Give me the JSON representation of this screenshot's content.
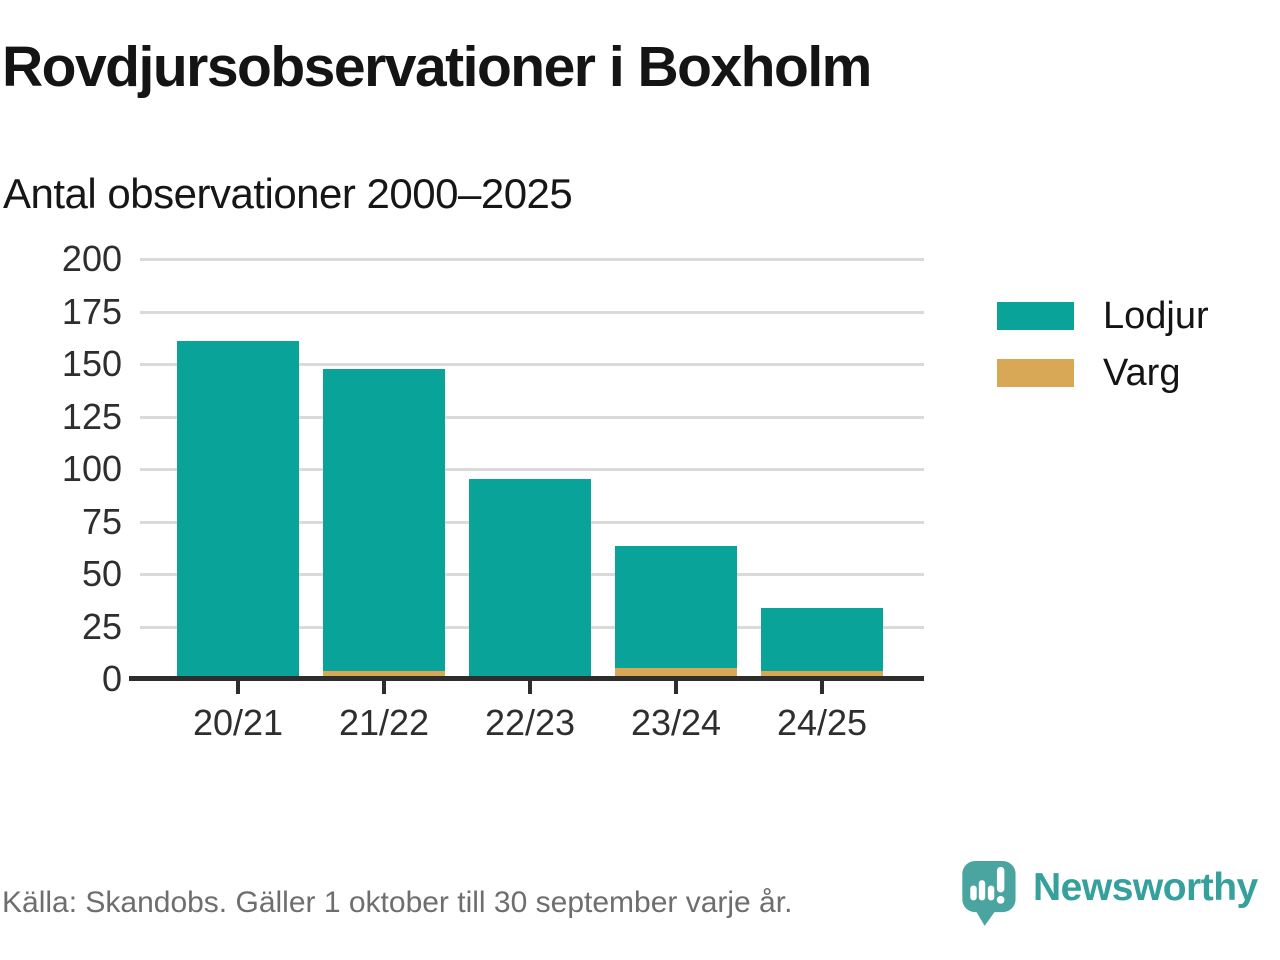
{
  "header": {
    "title": "Rovdjursobservationer i Boxholm",
    "subtitle": "Antal observationer 2000–2025"
  },
  "footer": {
    "source": "Källa: Skandobs. Gäller 1 oktober till 30 september varje år.",
    "brand": "Newsworthy"
  },
  "colors": {
    "lodjur": "#0aa39a",
    "varg": "#d9a857",
    "axis": "#2d2d2d",
    "grid": "#dadada",
    "logo_teal": "#4aa5a1",
    "wordmark_teal": "#35a09c",
    "source_gray": "#6e6e6e"
  },
  "chart_data": {
    "type": "bar",
    "stacked": true,
    "title": "Rovdjursobservationer i Boxholm",
    "subtitle": "Antal observationer 2000–2025",
    "categories": [
      "20/21",
      "21/22",
      "22/23",
      "23/24",
      "24/25"
    ],
    "series": [
      {
        "name": "Lodjur",
        "color": "#0aa39a",
        "values": [
          161,
          144,
          95,
          58,
          30
        ]
      },
      {
        "name": "Varg",
        "color": "#d9a857",
        "values": [
          0,
          4,
          0,
          5,
          4
        ]
      }
    ],
    "totals": [
      161,
      148,
      95,
      63,
      34
    ],
    "xlabel": "",
    "ylabel": "",
    "ylim": [
      0,
      200
    ],
    "yticks": [
      0,
      25,
      50,
      75,
      100,
      125,
      150,
      175,
      200
    ],
    "grid": true,
    "legend_position": "right"
  }
}
